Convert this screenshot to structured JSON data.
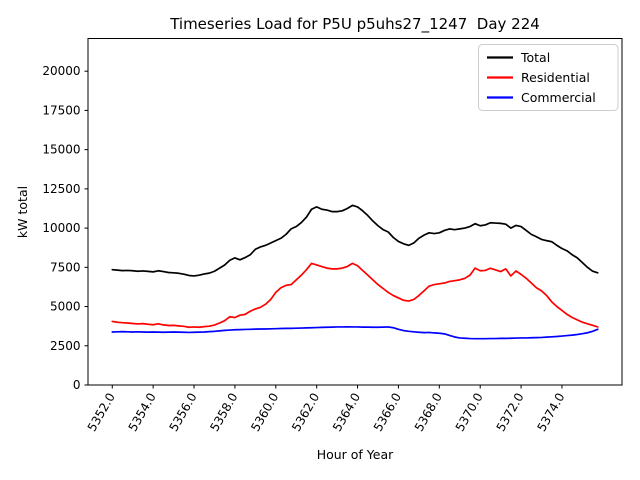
{
  "chart_data": {
    "type": "line",
    "title": "Timeseries Load for P5U p5uhs27_1247  Day 224",
    "xlabel": "Hour of Year",
    "ylabel": "kW total",
    "xlim": [
      5350.8125,
      5376.9375
    ],
    "ylim": [
      0,
      22083
    ],
    "grid": false,
    "legend_position": "upper right",
    "xticks": [
      5352,
      5354,
      5356,
      5358,
      5360,
      5362,
      5364,
      5366,
      5368,
      5370,
      5372,
      5374
    ],
    "xtick_labels": [
      "5352.0",
      "5354.0",
      "5356.0",
      "5358.0",
      "5360.0",
      "5362.0",
      "5364.0",
      "5366.0",
      "5368.0",
      "5370.0",
      "5372.0",
      "5374.0"
    ],
    "yticks": [
      0,
      2500,
      5000,
      7500,
      10000,
      12500,
      15000,
      17500,
      20000
    ],
    "ytick_labels": [
      "0",
      "2500",
      "5000",
      "7500",
      "10000",
      "12500",
      "15000",
      "17500",
      "20000"
    ],
    "x_start": 5352.0,
    "x_step": 0.25,
    "series": [
      {
        "name": "Total",
        "color": "#000000",
        "values": [
          7350,
          7320,
          7290,
          7300,
          7280,
          7250,
          7270,
          7240,
          7210,
          7280,
          7230,
          7170,
          7150,
          7120,
          7060,
          6980,
          6950,
          7000,
          7080,
          7130,
          7250,
          7450,
          7650,
          7950,
          8100,
          7980,
          8120,
          8300,
          8650,
          8800,
          8900,
          9050,
          9200,
          9350,
          9600,
          9950,
          10100,
          10350,
          10700,
          11200,
          11350,
          11200,
          11150,
          11050,
          11050,
          11100,
          11250,
          11450,
          11350,
          11100,
          10800,
          10450,
          10150,
          9900,
          9750,
          9400,
          9150,
          9000,
          8900,
          9050,
          9350,
          9550,
          9700,
          9650,
          9700,
          9850,
          9950,
          9900,
          9950,
          10000,
          10100,
          10280,
          10150,
          10200,
          10340,
          10320,
          10300,
          10250,
          10000,
          10170,
          10100,
          9850,
          9600,
          9450,
          9280,
          9200,
          9130,
          8900,
          8700,
          8550,
          8300,
          8100,
          7800,
          7500,
          7250,
          7150
        ]
      },
      {
        "name": "Residential",
        "color": "#ff0000",
        "values": [
          4050,
          4000,
          3970,
          3950,
          3920,
          3890,
          3910,
          3870,
          3840,
          3900,
          3830,
          3790,
          3800,
          3770,
          3740,
          3680,
          3700,
          3680,
          3720,
          3750,
          3820,
          3950,
          4100,
          4350,
          4300,
          4450,
          4500,
          4700,
          4850,
          4950,
          5150,
          5450,
          5900,
          6200,
          6350,
          6400,
          6700,
          7000,
          7350,
          7750,
          7650,
          7550,
          7450,
          7400,
          7400,
          7450,
          7550,
          7750,
          7600,
          7300,
          7000,
          6700,
          6400,
          6150,
          5900,
          5700,
          5550,
          5400,
          5350,
          5450,
          5700,
          6000,
          6300,
          6400,
          6450,
          6500,
          6600,
          6650,
          6700,
          6800,
          7000,
          7450,
          7280,
          7300,
          7440,
          7330,
          7230,
          7400,
          6950,
          7270,
          7050,
          6800,
          6500,
          6200,
          6000,
          5700,
          5300,
          5000,
          4750,
          4500,
          4300,
          4150,
          4000,
          3900,
          3800,
          3700
        ]
      },
      {
        "name": "Commercial",
        "color": "#0000ff",
        "values": [
          3380,
          3390,
          3400,
          3390,
          3380,
          3390,
          3380,
          3370,
          3380,
          3370,
          3360,
          3370,
          3380,
          3370,
          3360,
          3350,
          3360,
          3370,
          3380,
          3400,
          3420,
          3450,
          3480,
          3500,
          3520,
          3530,
          3540,
          3550,
          3560,
          3570,
          3570,
          3580,
          3590,
          3600,
          3610,
          3610,
          3620,
          3630,
          3640,
          3650,
          3660,
          3670,
          3680,
          3690,
          3700,
          3700,
          3710,
          3700,
          3700,
          3690,
          3690,
          3680,
          3680,
          3690,
          3700,
          3650,
          3550,
          3470,
          3420,
          3390,
          3360,
          3340,
          3350,
          3320,
          3300,
          3260,
          3160,
          3060,
          3000,
          2980,
          2960,
          2950,
          2950,
          2950,
          2960,
          2960,
          2970,
          2970,
          2980,
          2990,
          3000,
          3000,
          3010,
          3020,
          3030,
          3050,
          3070,
          3090,
          3120,
          3150,
          3180,
          3220,
          3270,
          3330,
          3420,
          3550
        ]
      }
    ]
  }
}
